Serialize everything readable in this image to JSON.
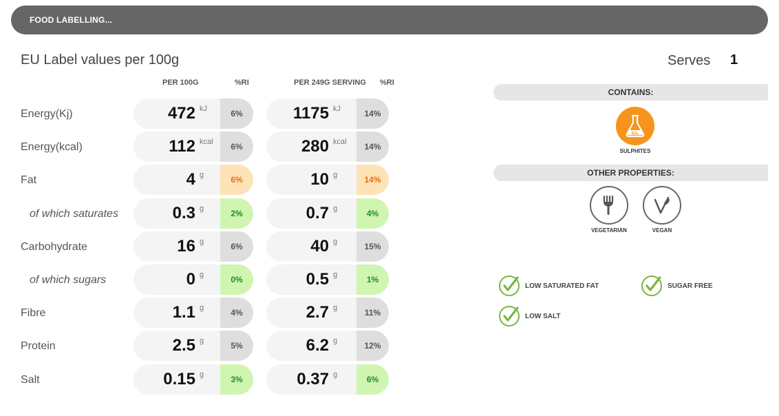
{
  "header": {
    "title": "FOOD LABELLING..."
  },
  "label": {
    "heading": "EU Label values per 100g",
    "serves_label": "Serves",
    "serves_value": "1"
  },
  "columns": {
    "per100": "PER 100G",
    "ri1": "%RI",
    "perServing": "PER 249G SERVING",
    "ri2": "%RI"
  },
  "rows": [
    {
      "label": "Energy(Kj)",
      "sub": false,
      "v1": "472",
      "u1": "kJ",
      "ri1": "6%",
      "ri1_level": "grey",
      "v2": "1175",
      "u2": "kJ",
      "ri2": "14%",
      "ri2_level": "grey"
    },
    {
      "label": "Energy(kcal)",
      "sub": false,
      "v1": "112",
      "u1": "kcal",
      "ri1": "6%",
      "ri1_level": "grey",
      "v2": "280",
      "u2": "kcal",
      "ri2": "14%",
      "ri2_level": "grey"
    },
    {
      "label": "Fat",
      "sub": false,
      "v1": "4",
      "u1": "g",
      "ri1": "6%",
      "ri1_level": "amber",
      "v2": "10",
      "u2": "g",
      "ri2": "14%",
      "ri2_level": "amber"
    },
    {
      "label": "of which saturates",
      "sub": true,
      "v1": "0.3",
      "u1": "g",
      "ri1": "2%",
      "ri1_level": "green",
      "v2": "0.7",
      "u2": "g",
      "ri2": "4%",
      "ri2_level": "green"
    },
    {
      "label": "Carbohydrate",
      "sub": false,
      "v1": "16",
      "u1": "g",
      "ri1": "6%",
      "ri1_level": "grey",
      "v2": "40",
      "u2": "g",
      "ri2": "15%",
      "ri2_level": "grey"
    },
    {
      "label": "of which sugars",
      "sub": true,
      "v1": "0",
      "u1": "g",
      "ri1": "0%",
      "ri1_level": "green",
      "v2": "0.5",
      "u2": "g",
      "ri2": "1%",
      "ri2_level": "green"
    },
    {
      "label": "Fibre",
      "sub": false,
      "v1": "1.1",
      "u1": "g",
      "ri1": "4%",
      "ri1_level": "grey",
      "v2": "2.7",
      "u2": "g",
      "ri2": "11%",
      "ri2_level": "grey"
    },
    {
      "label": "Protein",
      "sub": false,
      "v1": "2.5",
      "u1": "g",
      "ri1": "5%",
      "ri1_level": "grey",
      "v2": "6.2",
      "u2": "g",
      "ri2": "12%",
      "ri2_level": "grey"
    },
    {
      "label": "Salt",
      "sub": false,
      "v1": "0.15",
      "u1": "g",
      "ri1": "3%",
      "ri1_level": "green",
      "v2": "0.37",
      "u2": "g",
      "ri2": "6%",
      "ri2_level": "green"
    }
  ],
  "contains": {
    "title": "CONTAINS:",
    "items": [
      {
        "label": "SULPHITES",
        "icon": "sulphites-flask-icon",
        "symbol": "SO₂",
        "color": "#f7941d"
      }
    ]
  },
  "properties": {
    "title": "OTHER PROPERTIES:",
    "items": [
      {
        "label": "VEGETARIAN",
        "icon": "vegetarian-carrot-fork-icon"
      },
      {
        "label": "VEGAN",
        "icon": "vegan-leaf-icon"
      }
    ]
  },
  "claims": [
    {
      "label": "LOW SATURATED FAT",
      "icon": "check-circle-icon"
    },
    {
      "label": "SUGAR FREE",
      "icon": "check-circle-icon"
    },
    {
      "label": "LOW SALT",
      "icon": "check-circle-icon"
    }
  ],
  "colors": {
    "grey": "#dedede",
    "amber": "#fde3b6",
    "amber_text": "#e86d0f",
    "green": "#cff5b1",
    "green_text": "#1e8f1e",
    "check": "#7ab63d"
  }
}
